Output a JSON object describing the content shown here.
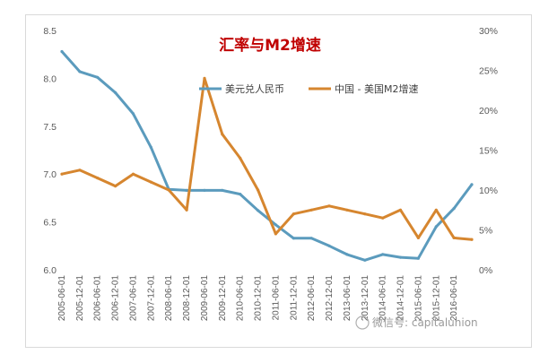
{
  "chart_data": {
    "type": "line",
    "title": "汇率与M2增速",
    "x": [
      "2005-06-01",
      "2005-12-01",
      "2006-06-01",
      "2006-12-01",
      "2007-06-01",
      "2007-12-01",
      "2008-06-01",
      "2008-12-01",
      "2009-06-01",
      "2009-12-01",
      "2010-06-01",
      "2010-12-01",
      "2011-06-01",
      "2011-12-01",
      "2012-06-01",
      "2012-12-01",
      "2013-06-01",
      "2013-12-01",
      "2014-06-01",
      "2014-12-01",
      "2015-06-01",
      "2015-12-01",
      "2016-06-01",
      "2016-12-01"
    ],
    "x_tick_labels": [
      "2005-06-01",
      "2005-12-01",
      "2006-06-01",
      "2006-12-01",
      "2007-06-01",
      "2007-12-01",
      "2008-06-01",
      "2008-12-01",
      "2009-06-01",
      "2009-12-01",
      "2010-06-01",
      "2010-12-01",
      "2011-06-01",
      "2011-12-01",
      "2012-06-01",
      "2012-12-01",
      "2013-06-01",
      "2013-12-01",
      "2014-06-01",
      "2014-12-01",
      "2015-06-01",
      "2015-12-01",
      "2016-06-01"
    ],
    "y_left": {
      "ylim": [
        6.0,
        8.5
      ],
      "ticks": [
        "8.5",
        "8.0",
        "7.5",
        "7.0",
        "6.5",
        "6.0"
      ]
    },
    "y_right": {
      "ylim": [
        0,
        30
      ],
      "ticks": [
        "30%",
        "25%",
        "20%",
        "15%",
        "10%",
        "5%",
        "0%"
      ]
    },
    "series": [
      {
        "name": "美元兑人民币",
        "axis": "left",
        "color": "#5b9bbd",
        "values": [
          8.28,
          8.07,
          8.01,
          7.85,
          7.63,
          7.28,
          6.84,
          6.83,
          6.83,
          6.83,
          6.79,
          6.62,
          6.47,
          6.33,
          6.33,
          6.25,
          6.16,
          6.1,
          6.16,
          6.13,
          6.12,
          6.45,
          6.64,
          6.89
        ]
      },
      {
        "name": "中国 - 美国M2增速",
        "axis": "right",
        "color": "#d6862f",
        "values": [
          12.0,
          12.5,
          11.5,
          10.5,
          12.0,
          11.0,
          10.0,
          7.5,
          24.0,
          17.0,
          14.0,
          10.0,
          4.5,
          7.0,
          7.5,
          8.0,
          7.5,
          7.0,
          6.5,
          7.5,
          4.0,
          7.5,
          4.0,
          3.8
        ]
      }
    ],
    "grid": false,
    "legend": "top-center"
  },
  "watermark": "微信号: capitalunion"
}
